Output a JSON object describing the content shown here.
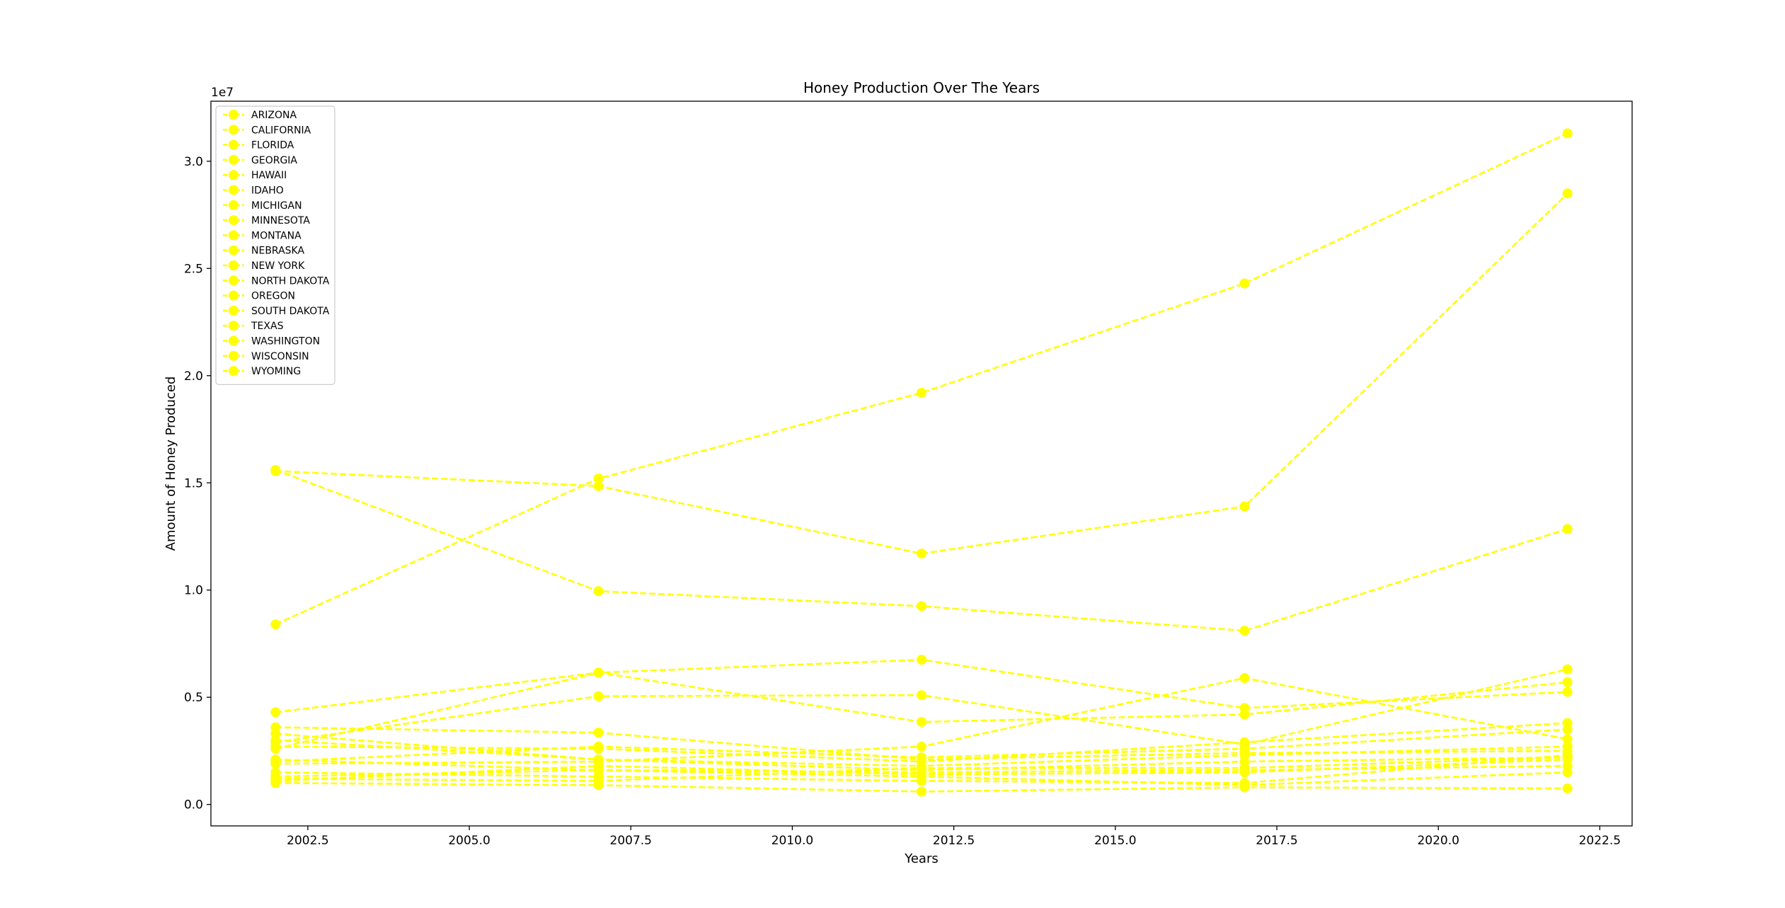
{
  "chart_data": {
    "type": "line",
    "title": "Honey Production Over The Years",
    "xlabel": "Years",
    "ylabel": "Amount of Honey Produced",
    "y_scale_label": "1e7",
    "xlim": [
      2001,
      2023
    ],
    "ylim": [
      -1000000,
      32800000
    ],
    "x_ticks": [
      2002.5,
      2005.0,
      2007.5,
      2010.0,
      2012.5,
      2015.0,
      2017.5,
      2020.0,
      2022.5
    ],
    "x_tick_labels": [
      "2002.5",
      "2005.0",
      "2007.5",
      "2010.0",
      "2012.5",
      "2015.0",
      "2017.5",
      "2020.0",
      "2022.5"
    ],
    "y_ticks": [
      0,
      5000000,
      10000000,
      15000000,
      20000000,
      25000000,
      30000000
    ],
    "y_tick_labels": [
      "0.0",
      "0.5",
      "1.0",
      "1.5",
      "2.0",
      "2.5",
      "3.0"
    ],
    "line_color": "#ffff00",
    "line_style": "dashed",
    "marker": "circle",
    "grid": false,
    "legend_position": "top-left",
    "x": [
      2002,
      2007,
      2012,
      2017,
      2022
    ],
    "series": [
      {
        "name": "ARIZONA",
        "values": [
          2100000,
          1600000,
          1300000,
          900000,
          1500000
        ]
      },
      {
        "name": "CALIFORNIA",
        "values": [
          15600000,
          9950000,
          9250000,
          8100000,
          12850000
        ]
      },
      {
        "name": "FLORIDA",
        "values": [
          15550000,
          14850000,
          11700000,
          13900000,
          28500000
        ]
      },
      {
        "name": "GEORGIA",
        "values": [
          1500000,
          1300000,
          1100000,
          1000000,
          2300000
        ]
      },
      {
        "name": "HAWAII",
        "values": [
          1000000,
          900000,
          600000,
          800000,
          750000
        ]
      },
      {
        "name": "IDAHO",
        "values": [
          3000000,
          2100000,
          1600000,
          2000000,
          2200000
        ]
      },
      {
        "name": "MICHIGAN",
        "values": [
          2700000,
          2600000,
          2000000,
          2900000,
          3800000
        ]
      },
      {
        "name": "MINNESOTA",
        "values": [
          3600000,
          3350000,
          2100000,
          2400000,
          2500000
        ]
      },
      {
        "name": "MONTANA",
        "values": [
          2600000,
          6150000,
          3850000,
          4200000,
          5700000
        ]
      },
      {
        "name": "NEBRASKA",
        "values": [
          1300000,
          1600000,
          1500000,
          1600000,
          1800000
        ]
      },
      {
        "name": "NEW YORK",
        "values": [
          2000000,
          2700000,
          2200000,
          2600000,
          3500000
        ]
      },
      {
        "name": "NORTH DAKOTA",
        "values": [
          8400000,
          15200000,
          19200000,
          24300000,
          31300000
        ]
      },
      {
        "name": "OREGON",
        "values": [
          1100000,
          1800000,
          1400000,
          1500000,
          2100000
        ]
      },
      {
        "name": "SOUTH DAKOTA",
        "values": [
          4300000,
          6150000,
          6750000,
          4500000,
          5250000
        ]
      },
      {
        "name": "TEXAS",
        "values": [
          2900000,
          5050000,
          5100000,
          2800000,
          6300000
        ]
      },
      {
        "name": "WASHINGTON",
        "values": [
          1900000,
          2000000,
          2700000,
          5900000,
          3050000
        ]
      },
      {
        "name": "WISCONSIN",
        "values": [
          3300000,
          2100000,
          1800000,
          2300000,
          2700000
        ]
      },
      {
        "name": "WYOMING",
        "values": [
          1200000,
          1100000,
          1700000,
          1700000,
          2200000
        ]
      }
    ]
  }
}
